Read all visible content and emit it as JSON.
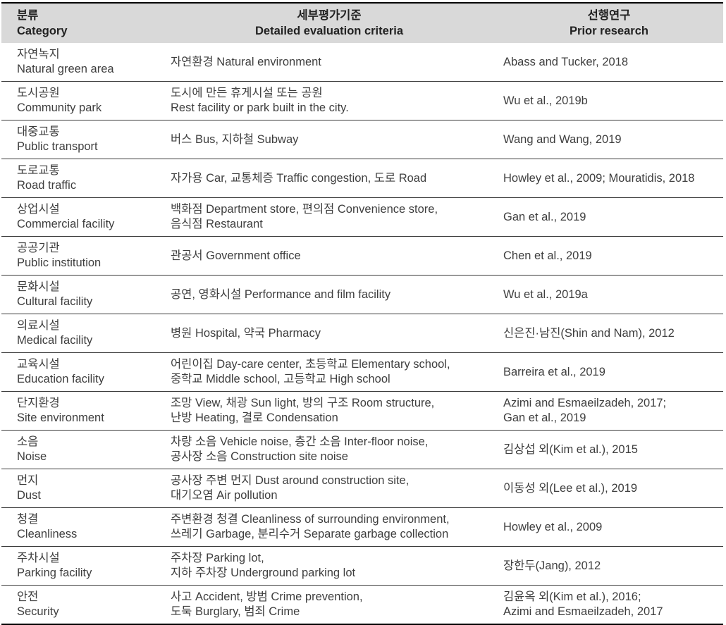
{
  "colors": {
    "header_bg": "#d9d9d9",
    "border": "#000000",
    "row_divider": "#3a3a3a",
    "body_text": "#3e3e3e",
    "header_text": "#222222"
  },
  "table": {
    "columns": [
      {
        "ko": "분류",
        "en": "Category"
      },
      {
        "ko": "세부평가기준",
        "en": "Detailed evaluation criteria"
      },
      {
        "ko": "선행연구",
        "en": "Prior research"
      }
    ],
    "rows": [
      {
        "category_ko": "자연녹지",
        "category_en": "Natural green area",
        "criteria_lines": [
          "자연환경 Natural environment"
        ],
        "prior_lines": [
          "Abass and Tucker, 2018"
        ]
      },
      {
        "category_ko": "도시공원",
        "category_en": "Community park",
        "criteria_lines": [
          "도시에 만든 휴게시설 또는 공원",
          "Rest facility or park built in the city."
        ],
        "prior_lines": [
          "Wu et al., 2019b"
        ]
      },
      {
        "category_ko": "대중교통",
        "category_en": "Public transport",
        "criteria_lines": [
          "버스 Bus, 지하철 Subway"
        ],
        "prior_lines": [
          "Wang and Wang, 2019"
        ]
      },
      {
        "category_ko": "도로교통",
        "category_en": "Road traffic",
        "criteria_lines": [
          "자가용 Car, 교통체증 Traffic congestion, 도로 Road"
        ],
        "prior_lines": [
          "Howley et al., 2009; Mouratidis, 2018"
        ]
      },
      {
        "category_ko": "상업시설",
        "category_en": "Commercial facility",
        "criteria_lines": [
          "백화점 Department store, 편의점 Convenience store,",
          "음식점 Restaurant"
        ],
        "prior_lines": [
          "Gan et al., 2019"
        ]
      },
      {
        "category_ko": "공공기관",
        "category_en": "Public institution",
        "criteria_lines": [
          "관공서 Government office"
        ],
        "prior_lines": [
          "Chen et al., 2019"
        ]
      },
      {
        "category_ko": "문화시설",
        "category_en": "Cultural facility",
        "criteria_lines": [
          "공연, 영화시설 Performance and film facility"
        ],
        "prior_lines": [
          "Wu et al., 2019a"
        ]
      },
      {
        "category_ko": "의료시설",
        "category_en": "Medical facility",
        "criteria_lines": [
          "병원 Hospital, 약국 Pharmacy"
        ],
        "prior_lines": [
          "신은진·남진(Shin and Nam), 2012"
        ]
      },
      {
        "category_ko": "교육시설",
        "category_en": "Education facility",
        "criteria_lines": [
          "어린이집 Day-care center, 초등학교 Elementary school,",
          "중학교 Middle school, 고등학교 High school"
        ],
        "prior_lines": [
          "Barreira et al., 2019"
        ]
      },
      {
        "category_ko": "단지환경",
        "category_en": "Site environment",
        "criteria_lines": [
          "조망 View, 채광 Sun light, 방의 구조 Room structure,",
          "난방 Heating, 결로 Condensation"
        ],
        "prior_lines": [
          "Azimi and Esmaeilzadeh, 2017;",
          "Gan et al., 2019"
        ]
      },
      {
        "category_ko": "소음",
        "category_en": "Noise",
        "criteria_lines": [
          "차량 소음 Vehicle noise, 층간 소음 Inter-floor noise,",
          "공사장 소음 Construction site noise"
        ],
        "prior_lines": [
          "김상섭 외(Kim et al.), 2015"
        ]
      },
      {
        "category_ko": "먼지",
        "category_en": "Dust",
        "criteria_lines": [
          "공사장 주변 먼지 Dust around construction site,",
          "대기오염 Air pollution"
        ],
        "prior_lines": [
          "이동성 외(Lee et al.), 2019"
        ]
      },
      {
        "category_ko": "청결",
        "category_en": "Cleanliness",
        "criteria_lines": [
          "주변환경 청결 Cleanliness of surrounding environment,",
          "쓰레기 Garbage, 분리수거 Separate garbage collection"
        ],
        "prior_lines": [
          "Howley et al., 2009"
        ]
      },
      {
        "category_ko": "주차시설",
        "category_en": "Parking facility",
        "criteria_lines": [
          "주차장 Parking lot,",
          "지하 주차장 Underground parking lot"
        ],
        "prior_lines": [
          "장한두(Jang), 2012"
        ]
      },
      {
        "category_ko": "안전",
        "category_en": "Security",
        "criteria_lines": [
          "사고 Accident, 방범 Crime prevention,",
          "도둑 Burglary, 범죄 Crime"
        ],
        "prior_lines": [
          "김윤옥 외(Kim et al.), 2016;",
          "Azimi and Esmaeilzadeh, 2017"
        ]
      }
    ]
  }
}
